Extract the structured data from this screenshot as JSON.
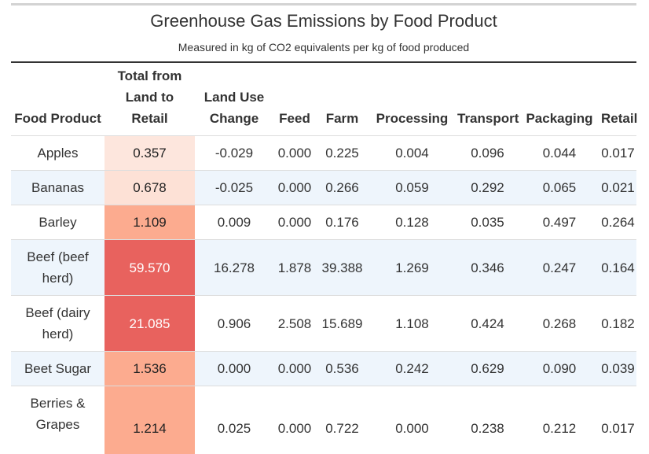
{
  "title": "Greenhouse Gas Emissions by Food Product",
  "subtitle": "Measured in kg of CO2 equivalents per kg of food produced",
  "columns": [
    "Food Product",
    "Total from Land to Retail",
    "Land Use Change",
    "Feed",
    "Farm",
    "Processing",
    "Transport",
    "Packaging",
    "Retail"
  ],
  "rows": [
    {
      "product": "Apples",
      "total": "0.357",
      "land_use": "-0.029",
      "feed": "0.000",
      "farm": "0.225",
      "processing": "0.004",
      "transport": "0.096",
      "packaging": "0.044",
      "retail": "0.017",
      "total_color": "#fde6dd"
    },
    {
      "product": "Bananas",
      "total": "0.678",
      "land_use": "-0.025",
      "feed": "0.000",
      "farm": "0.266",
      "processing": "0.059",
      "transport": "0.292",
      "packaging": "0.065",
      "retail": "0.021",
      "total_color": "#fde1d6"
    },
    {
      "product": "Barley",
      "total": "1.109",
      "land_use": "0.009",
      "feed": "0.000",
      "farm": "0.176",
      "processing": "0.128",
      "transport": "0.035",
      "packaging": "0.497",
      "retail": "0.264",
      "total_color": "#fcab8f"
    },
    {
      "product": "Beef (beef herd)",
      "total": "59.570",
      "land_use": "16.278",
      "feed": "1.878",
      "farm": "39.388",
      "processing": "1.269",
      "transport": "0.346",
      "packaging": "0.247",
      "retail": "0.164",
      "total_color": "#e8625e"
    },
    {
      "product": "Beef (dairy herd)",
      "total": "21.085",
      "land_use": "0.906",
      "feed": "2.508",
      "farm": "15.689",
      "processing": "1.108",
      "transport": "0.424",
      "packaging": "0.268",
      "retail": "0.182",
      "total_color": "#e8625e"
    },
    {
      "product": "Beet Sugar",
      "total": "1.536",
      "land_use": "0.000",
      "feed": "0.000",
      "farm": "0.536",
      "processing": "0.242",
      "transport": "0.629",
      "packaging": "0.090",
      "retail": "0.039",
      "total_color": "#fcab8f"
    },
    {
      "product": "Berries & Grapes",
      "total": "1.214",
      "land_use": "0.025",
      "feed": "0.000",
      "farm": "0.722",
      "processing": "0.000",
      "transport": "0.238",
      "packaging": "0.212",
      "retail": "0.017",
      "total_color": "#fcab8f"
    }
  ]
}
